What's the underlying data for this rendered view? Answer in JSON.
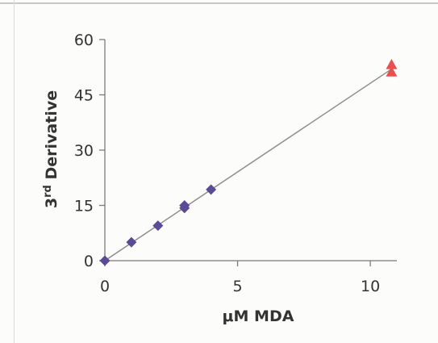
{
  "chart_data": {
    "type": "scatter",
    "title": "",
    "xlabel": "μM MDA",
    "ylabel_base": "3",
    "ylabel_sup": "rd",
    "ylabel_rest": " Derivative",
    "xlim": [
      0,
      11
    ],
    "ylim": [
      0,
      60
    ],
    "xticks": [
      0,
      5,
      10
    ],
    "yticks": [
      0,
      15,
      30,
      45,
      60
    ],
    "grid": false,
    "legend": "none",
    "series": [
      {
        "marker": "diamond",
        "color": "#5b4a96",
        "points": [
          [
            0,
            0
          ],
          [
            1,
            5
          ],
          [
            2,
            9.5
          ],
          [
            3,
            14.3
          ],
          [
            3,
            15
          ],
          [
            4,
            19.3
          ]
        ]
      },
      {
        "marker": "triangle",
        "color": "#e8504f",
        "points": [
          [
            10.8,
            51.2
          ],
          [
            10.8,
            53.2
          ]
        ]
      }
    ],
    "trendline": {
      "color": "#8a8a8a",
      "from": [
        0,
        0
      ],
      "to": [
        10.8,
        52
      ]
    }
  }
}
